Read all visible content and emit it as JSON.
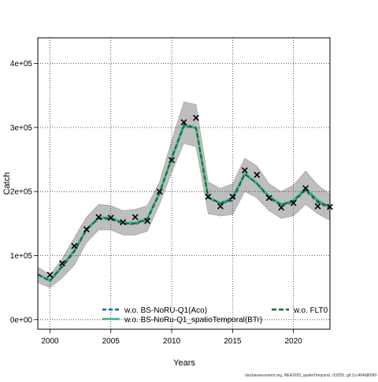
{
  "chart_data": {
    "type": "line",
    "xlabel": "Years",
    "ylabel": "Catch",
    "xlim": [
      1999,
      2023
    ],
    "ylim": [
      -15000,
      440000
    ],
    "x_ticks": [
      2000,
      2005,
      2010,
      2015,
      2020
    ],
    "x_tick_labels": [
      "2000",
      "2005",
      "2010",
      "2015",
      "2020"
    ],
    "y_ticks": [
      0,
      100000,
      200000,
      300000,
      400000
    ],
    "y_tick_labels": [
      "0e+00",
      "1e+05",
      "2e+05",
      "3e+05",
      "4e+05"
    ],
    "grid": true,
    "legend_position": "bottom",
    "years": [
      1999,
      2000,
      2001,
      2002,
      2003,
      2004,
      2005,
      2006,
      2007,
      2008,
      2009,
      2010,
      2011,
      2012,
      2013,
      2014,
      2015,
      2016,
      2017,
      2018,
      2019,
      2020,
      2021,
      2022,
      2023
    ],
    "band": {
      "color": "#bebebe",
      "lower": [
        58000,
        50000,
        65000,
        85000,
        120000,
        140000,
        140000,
        132000,
        132000,
        138000,
        180000,
        230000,
        275000,
        270000,
        165000,
        162000,
        164000,
        200000,
        190000,
        170000,
        158000,
        162000,
        180000,
        165000,
        155000
      ],
      "upper": [
        82000,
        70000,
        95000,
        128000,
        160000,
        180000,
        178000,
        170000,
        172000,
        178000,
        215000,
        280000,
        340000,
        336000,
        215000,
        205000,
        212000,
        252000,
        240000,
        212000,
        200000,
        210000,
        232000,
        210000,
        196000
      ]
    },
    "observed": {
      "marker": "x",
      "x": [
        2000,
        2001,
        2002,
        2003,
        2004,
        2005,
        2006,
        2007,
        2008,
        2009,
        2010,
        2011,
        2012,
        2013,
        2014,
        2015,
        2016,
        2017,
        2018,
        2019,
        2020,
        2021,
        2022,
        2023
      ],
      "y": [
        70000,
        88000,
        115000,
        141000,
        160000,
        159000,
        152000,
        160000,
        154000,
        200000,
        249000,
        308000,
        315000,
        192000,
        177000,
        192000,
        233000,
        226000,
        190000,
        175000,
        182000,
        205000,
        177000,
        176000
      ]
    },
    "series": [
      {
        "name": "w.o. BS-NoRU-Q1(Aco)",
        "color": "#1f5fae",
        "dash": "5,3",
        "values": [
          71000,
          60000,
          82000,
          106000,
          140000,
          158000,
          157000,
          150000,
          149000,
          156000,
          197000,
          253000,
          305000,
          300000,
          190000,
          181000,
          186000,
          227000,
          212000,
          190000,
          178000,
          184000,
          202000,
          183000,
          174000
        ]
      },
      {
        "name": "w.o. BS-NoRu-Q1_spatioTemporal(BTr)",
        "color": "#2bb88a",
        "dash": "",
        "values": [
          70000,
          61000,
          84000,
          108000,
          141000,
          159000,
          159000,
          151000,
          151000,
          158000,
          198000,
          252000,
          302000,
          300000,
          191000,
          182000,
          190000,
          228000,
          213000,
          192000,
          180000,
          186000,
          205000,
          186000,
          176000
        ]
      },
      {
        "name": "w.o. FLT0",
        "color": "#1f6b2a",
        "dash": "6,3",
        "values": [
          70500,
          60500,
          83000,
          107000,
          140500,
          158500,
          158000,
          150500,
          150000,
          157000,
          197500,
          252500,
          303000,
          299000,
          190500,
          181500,
          188000,
          227500,
          212500,
          191000,
          179000,
          185000,
          203500,
          184500,
          175000
        ]
      }
    ],
    "footer": "stockassessment.org, NEA2025_spatioTemporal, r19255, git:1cc464b8096f"
  }
}
